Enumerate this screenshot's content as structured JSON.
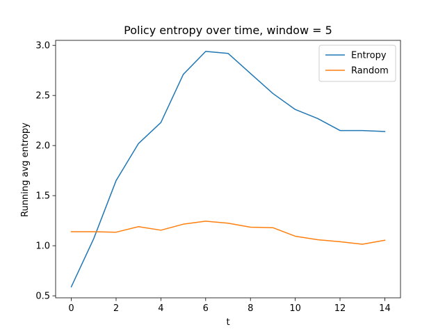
{
  "chart_data": {
    "type": "line",
    "title": "Policy entropy over time, window = 5",
    "xlabel": "t",
    "ylabel": "Running avg entropy",
    "x": [
      0,
      1,
      2,
      3,
      4,
      5,
      6,
      7,
      8,
      9,
      10,
      11,
      12,
      13,
      14
    ],
    "xlim": [
      -0.7,
      14.7
    ],
    "ylim": [
      0.48,
      3.05
    ],
    "xticks": [
      0,
      2,
      4,
      6,
      8,
      10,
      12,
      14
    ],
    "yticks": [
      0.5,
      1.0,
      1.5,
      2.0,
      2.5,
      3.0
    ],
    "grid": false,
    "legend_position": "top-right",
    "series": [
      {
        "name": "Entropy",
        "color": "#1f77b4",
        "values": [
          0.59,
          1.07,
          1.65,
          2.02,
          2.23,
          2.71,
          2.94,
          2.92,
          2.72,
          2.52,
          2.36,
          2.27,
          2.15,
          2.15,
          2.14
        ]
      },
      {
        "name": "Random",
        "color": "#ff7f0e",
        "values": [
          1.14,
          1.14,
          1.135,
          1.19,
          1.155,
          1.215,
          1.245,
          1.225,
          1.185,
          1.18,
          1.095,
          1.06,
          1.04,
          1.015,
          1.055
        ]
      }
    ]
  }
}
